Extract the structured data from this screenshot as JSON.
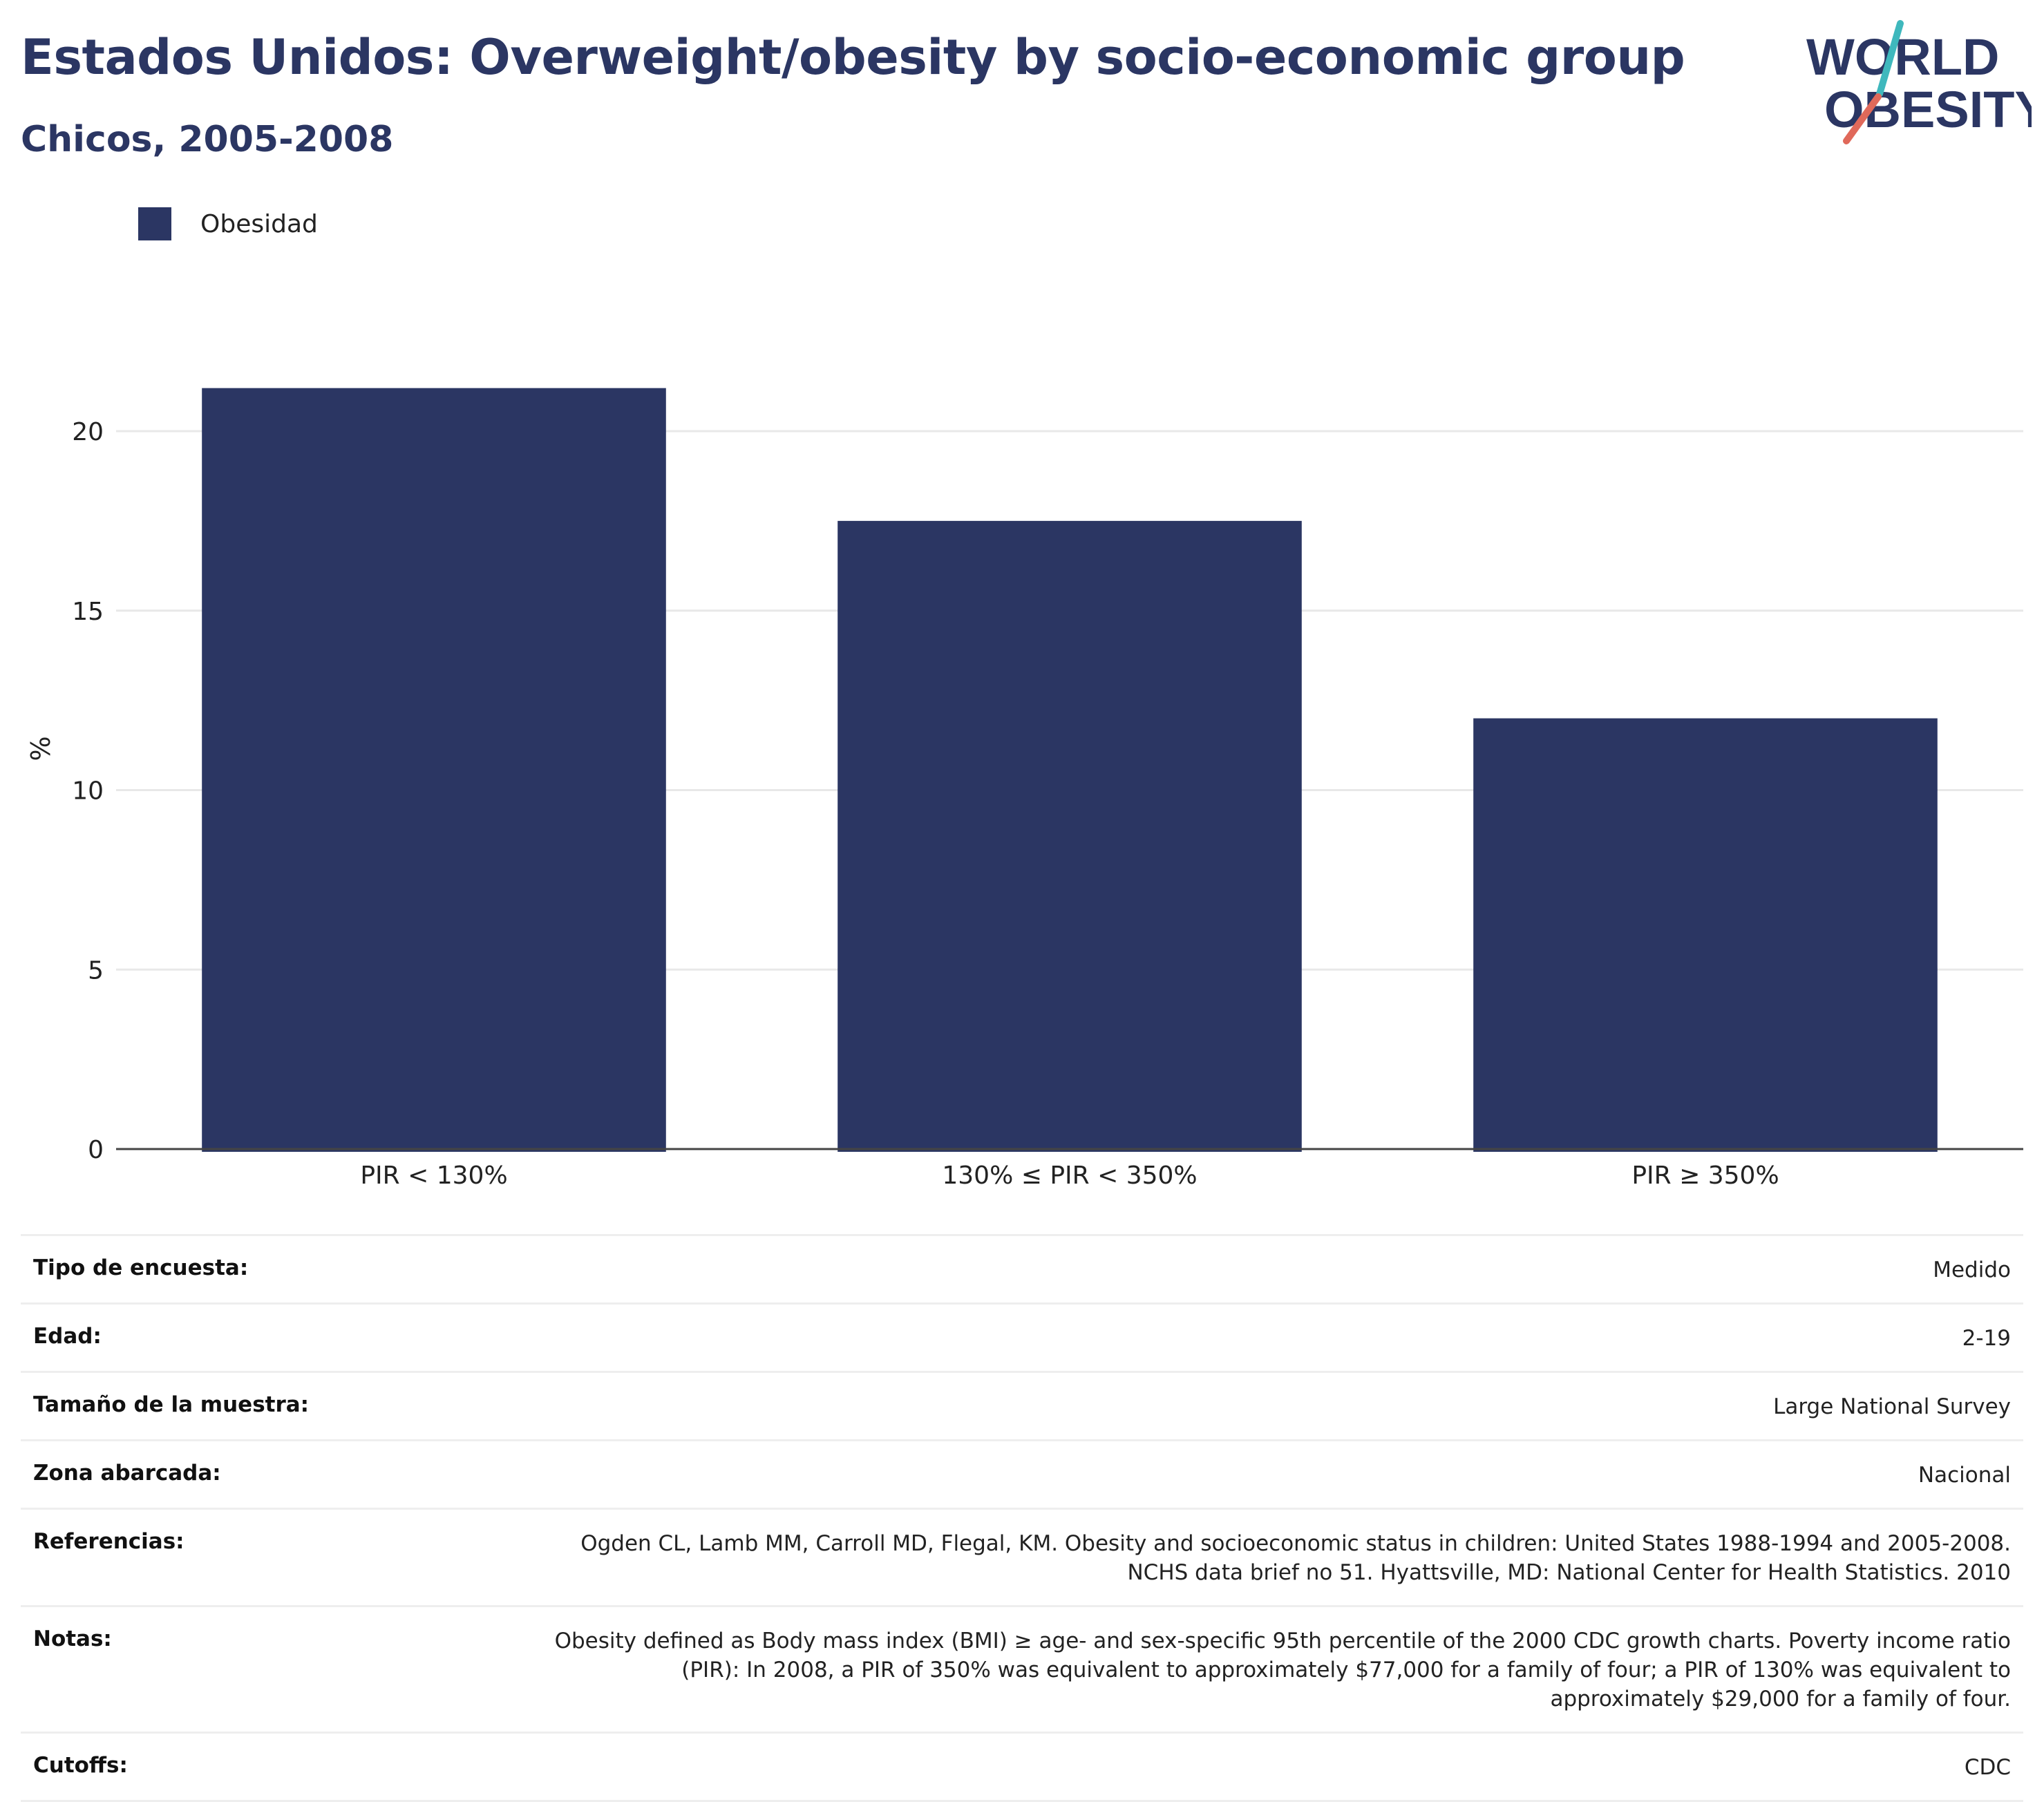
{
  "header": {
    "title": "Estados Unidos: Overweight/obesity by socio-economic group",
    "subtitle": "Chicos, 2005-2008"
  },
  "logo": {
    "line1": "WORLD",
    "line2": "OBESITY",
    "text_color": "#2b3663",
    "slash_colors": [
      "#3fb8bd",
      "#e0695a"
    ]
  },
  "chart_data": {
    "type": "bar",
    "categories": [
      "PIR < 130%",
      "130% ≤ PIR < 350%",
      "PIR ≥ 350%"
    ],
    "series": [
      {
        "name": "Obesidad",
        "values": [
          21.2,
          17.5,
          12.0
        ],
        "color": "#2b3663"
      }
    ],
    "xlabel": "",
    "ylabel": "%",
    "ylim": [
      0,
      22
    ],
    "yticks": [
      0,
      5,
      10,
      15,
      20
    ],
    "grid": true,
    "legend": "top-left"
  },
  "info": [
    {
      "label": "Tipo de encuesta:",
      "value": "Medido"
    },
    {
      "label": "Edad:",
      "value": "2-19"
    },
    {
      "label": "Tamaño de la muestra:",
      "value": "Large National Survey"
    },
    {
      "label": "Zona abarcada:",
      "value": "Nacional"
    },
    {
      "label": "Referencias:",
      "value": "Ogden CL, Lamb MM, Carroll MD, Flegal, KM. Obesity and socioeconomic status in children: United States 1988-1994 and 2005-2008. NCHS data brief no 51. Hyattsville, MD: National Center for Health Statistics. 2010"
    },
    {
      "label": "Notas:",
      "value": "Obesity defined as Body mass index (BMI) ≥ age- and sex-specific 95th percentile of the 2000 CDC growth charts. Poverty income ratio (PIR): In 2008, a PIR of 350% was equivalent to approximately $77,000 for a family of four; a PIR of 130% was equivalent to approximately $29,000 for a family of four."
    },
    {
      "label": "Cutoffs:",
      "value": "CDC"
    }
  ]
}
